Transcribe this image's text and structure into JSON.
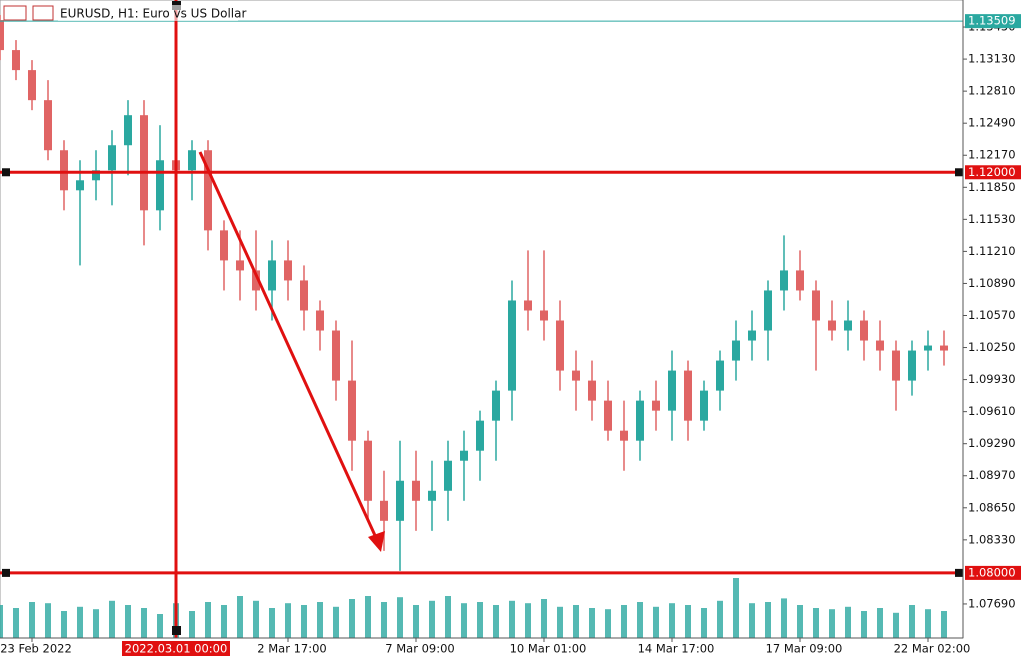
{
  "chart_data": {
    "type": "candlestick",
    "title": "EURUSD, H1:  Euro vs US Dollar",
    "categories": [
      null,
      null,
      "23 Feb 2022",
      null,
      null,
      null,
      null,
      null,
      null,
      null,
      null,
      null,
      null,
      null,
      null,
      null,
      null,
      null,
      "2 Mar 17:00",
      null,
      null,
      null,
      null,
      null,
      null,
      null,
      "7 Mar 09:00",
      null,
      null,
      null,
      null,
      null,
      null,
      null,
      "10 Mar 01:00",
      null,
      null,
      null,
      null,
      null,
      null,
      null,
      "14 Mar 17:00",
      null,
      null,
      null,
      null,
      null,
      null,
      null,
      "17 Mar 09:00",
      null,
      null,
      null,
      null,
      null,
      null,
      null,
      "22 Mar 02:00",
      null
    ],
    "open": [
      1.1352,
      1.1322,
      1.1302,
      1.1272,
      1.1222,
      1.1182,
      1.1192,
      1.1202,
      1.1227,
      1.1257,
      1.1162,
      1.1212,
      1.1202,
      1.1222,
      1.1142,
      1.1112,
      1.1102,
      1.1082,
      1.1112,
      1.1092,
      1.1062,
      1.1042,
      1.0992,
      1.0932,
      1.0872,
      1.0852,
      1.0892,
      1.0872,
      1.0882,
      1.0912,
      1.0922,
      1.0952,
      1.0982,
      1.1072,
      1.1062,
      1.1052,
      1.1002,
      1.0992,
      1.0972,
      1.0942,
      1.0932,
      1.0972,
      1.0962,
      1.1002,
      1.0952,
      1.0982,
      1.1012,
      1.1032,
      1.1042,
      1.1082,
      1.1102,
      1.1082,
      1.1052,
      1.1042,
      1.1052,
      1.1032,
      1.1022,
      1.0992,
      1.1022,
      1.1027
    ],
    "high": [
      1.1357,
      1.1332,
      1.1312,
      1.1292,
      1.1232,
      1.1212,
      1.1222,
      1.1242,
      1.1272,
      1.1272,
      1.1247,
      1.1242,
      1.1232,
      1.1232,
      1.1152,
      1.1142,
      1.1142,
      1.1132,
      1.1132,
      1.1107,
      1.1072,
      1.1052,
      1.1032,
      1.0942,
      1.0902,
      1.0932,
      1.0922,
      1.0912,
      1.0932,
      1.0942,
      1.0962,
      1.0992,
      1.1092,
      1.1122,
      1.1122,
      1.1072,
      1.1022,
      1.1012,
      1.0992,
      1.0972,
      1.0982,
      1.0992,
      1.1022,
      1.1012,
      1.0992,
      1.1022,
      1.1052,
      1.1062,
      1.1092,
      1.1137,
      1.1122,
      1.1092,
      1.1072,
      1.1072,
      1.1062,
      1.1052,
      1.1032,
      1.1032,
      1.1042,
      1.1042
    ],
    "low": [
      1.1312,
      1.1292,
      1.1262,
      1.1212,
      1.1162,
      1.1107,
      1.1172,
      1.1167,
      1.1197,
      1.1127,
      1.1142,
      1.1182,
      1.1172,
      1.1122,
      1.1082,
      1.1072,
      1.1062,
      1.1052,
      1.1072,
      1.1042,
      1.1022,
      1.0972,
      1.0902,
      1.0852,
      1.0822,
      1.0802,
      1.0842,
      1.0842,
      1.0852,
      1.0872,
      1.0892,
      1.0912,
      1.0952,
      1.1042,
      1.1032,
      1.0982,
      1.0962,
      1.0952,
      1.0932,
      1.0902,
      1.0912,
      1.0942,
      1.0932,
      1.0932,
      1.0942,
      1.0962,
      1.0992,
      1.1012,
      1.1012,
      1.1062,
      1.1072,
      1.1002,
      1.1032,
      1.1022,
      1.1012,
      1.1002,
      1.0962,
      1.0977,
      1.1002,
      1.1007
    ],
    "close": [
      1.1322,
      1.1302,
      1.1272,
      1.1222,
      1.1182,
      1.1192,
      1.1202,
      1.1227,
      1.1257,
      1.1162,
      1.1212,
      1.1202,
      1.1222,
      1.1142,
      1.1112,
      1.1102,
      1.1082,
      1.1112,
      1.1092,
      1.1062,
      1.1042,
      1.0992,
      1.0932,
      1.0872,
      1.0852,
      1.0892,
      1.0872,
      1.0882,
      1.0912,
      1.0922,
      1.0952,
      1.0982,
      1.1072,
      1.1062,
      1.1052,
      1.1002,
      1.0992,
      1.0972,
      1.0942,
      1.0932,
      1.0972,
      1.0962,
      1.1002,
      1.0952,
      1.0982,
      1.1012,
      1.1032,
      1.1042,
      1.1082,
      1.1102,
      1.1082,
      1.1052,
      1.1042,
      1.1052,
      1.1032,
      1.1022,
      1.0992,
      1.1022,
      1.1027,
      1.1022
    ],
    "up_color": "#2aa8a0",
    "down_color": "#e06464",
    "volumes": [
      55,
      50,
      60,
      58,
      45,
      52,
      48,
      62,
      55,
      50,
      40,
      58,
      45,
      60,
      55,
      70,
      62,
      50,
      58,
      55,
      60,
      52,
      65,
      70,
      60,
      68,
      55,
      62,
      70,
      58,
      60,
      55,
      62,
      58,
      65,
      52,
      55,
      50,
      48,
      55,
      60,
      52,
      58,
      55,
      50,
      62,
      100,
      58,
      60,
      66,
      55,
      50,
      48,
      52,
      45,
      50,
      42,
      55,
      48,
      45
    ],
    "volume_color": "#2aa8a0",
    "volume_lim": [
      0,
      100
    ],
    "ylim": [
      1.0735,
      1.1372
    ],
    "yticks": [
      {
        "value": 1.1345,
        "label": "1.13450"
      },
      {
        "value": 1.1313,
        "label": "1.13130"
      },
      {
        "value": 1.1281,
        "label": "1.12810"
      },
      {
        "value": 1.1249,
        "label": "1.12490"
      },
      {
        "value": 1.1217,
        "label": "1.12170"
      },
      {
        "value": 1.1185,
        "label": "1.11850"
      },
      {
        "value": 1.1153,
        "label": "1.11530"
      },
      {
        "value": 1.1121,
        "label": "1.11210"
      },
      {
        "value": 1.1089,
        "label": "1.10890"
      },
      {
        "value": 1.1057,
        "label": "1.10570"
      },
      {
        "value": 1.1025,
        "label": "1.10250"
      },
      {
        "value": 1.0993,
        "label": "1.09930"
      },
      {
        "value": 1.0961,
        "label": "1.09610"
      },
      {
        "value": 1.0929,
        "label": "1.09290"
      },
      {
        "value": 1.0897,
        "label": "1.08970"
      },
      {
        "value": 1.0865,
        "label": "1.08650"
      },
      {
        "value": 1.0833,
        "label": "1.08330"
      },
      {
        "value": 1.0769,
        "label": "1.07690"
      }
    ],
    "hlines": [
      {
        "value": 1.13509,
        "label": "1.13509",
        "color": "#2aa8a0",
        "width": 1
      },
      {
        "value": 1.12,
        "label": "1.12000",
        "color": "#e01010",
        "width": 3
      },
      {
        "value": 1.08,
        "label": "1.08000",
        "color": "#e01010",
        "width": 3
      }
    ],
    "vertical_line": {
      "label": "2022.03.01 00:00",
      "color": "#e01010"
    }
  }
}
